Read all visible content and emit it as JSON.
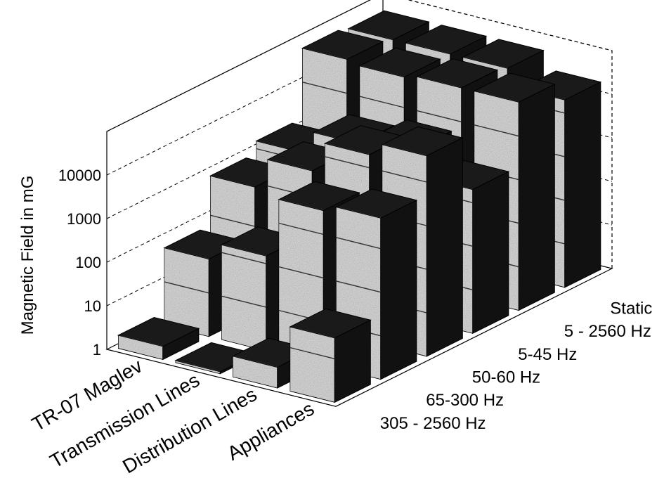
{
  "chart_data": {
    "type": "bar3d",
    "title": "",
    "ylabel": "Magnetic Field in mG",
    "yscale": "log",
    "ylim": [
      1,
      100000
    ],
    "yticks": [
      "1",
      "10",
      "100",
      "1000",
      "10000"
    ],
    "categories": [
      "TR-07 Maglev",
      "Transmission Lines",
      "Distribution Lines",
      "Appliances"
    ],
    "series": [
      {
        "name": "305 - 2560 Hz",
        "values": [
          2,
          1,
          3,
          30
        ]
      },
      {
        "name": "65-300 Hz",
        "values": [
          60,
          150,
          3500,
          5000
        ]
      },
      {
        "name": "50-60 Hz",
        "values": [
          800,
          4000,
          20000,
          40000
        ]
      },
      {
        "name": "5-45 Hz",
        "values": [
          1500,
          5000,
          8000,
          2000
        ]
      },
      {
        "name": "5 - 2560 Hz",
        "values": [
          60000,
          50000,
          60000,
          60000
        ]
      },
      {
        "name": "Static",
        "values": [
          50000,
          50000,
          50000,
          20000
        ]
      }
    ],
    "grid": true,
    "colors": {
      "front": "#d9d9d9",
      "side": "#111111",
      "top": "#1a1a1a"
    }
  }
}
